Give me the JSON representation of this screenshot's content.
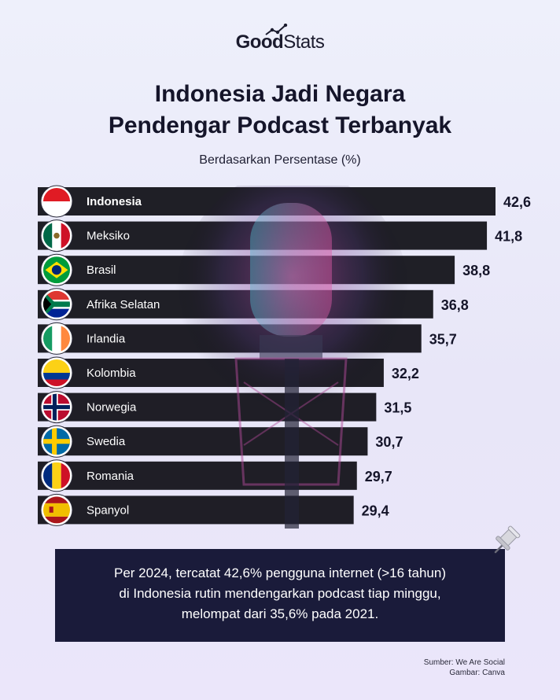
{
  "brand": {
    "logo_bold": "Good",
    "logo_light": "Stats"
  },
  "header": {
    "title_line1": "Indonesia Jadi Negara",
    "title_line2": "Pendengar Podcast Terbanyak",
    "subtitle": "Berdasarkan Persentase (%)"
  },
  "chart_data": {
    "type": "bar",
    "orientation": "horizontal",
    "title": "Indonesia Jadi Negara Pendengar Podcast Terbanyak",
    "subtitle": "Berdasarkan Persentase (%)",
    "categories": [
      "Indonesia",
      "Meksiko",
      "Brasil",
      "Afrika Selatan",
      "Irlandia",
      "Kolombia",
      "Norwegia",
      "Swedia",
      "Romania",
      "Spanyol"
    ],
    "values": [
      42.6,
      41.8,
      38.8,
      36.8,
      35.7,
      32.2,
      31.5,
      30.7,
      29.7,
      29.4
    ],
    "value_labels": [
      "42,6",
      "41,8",
      "38,8",
      "36,8",
      "35,7",
      "32,2",
      "31,5",
      "30,7",
      "29,7",
      "29,4"
    ],
    "flags": [
      "indonesia-flag",
      "mexico-flag",
      "brazil-flag",
      "south-africa-flag",
      "ireland-flag",
      "colombia-flag",
      "norway-flag",
      "sweden-flag",
      "romania-flag",
      "spain-flag"
    ],
    "bar_color": "#0d0d14",
    "highlight": "Indonesia"
  },
  "callout": {
    "line1": "Per 2024, tercatat 42,6% pengguna internet (>16 tahun)",
    "line2": "di Indonesia rutin mendengarkan podcast tiap minggu,",
    "line3": "melompat dari 35,6% pada 2021."
  },
  "source": {
    "line1": "Sumber: We Are Social",
    "line2": "Gambar: Canva"
  }
}
